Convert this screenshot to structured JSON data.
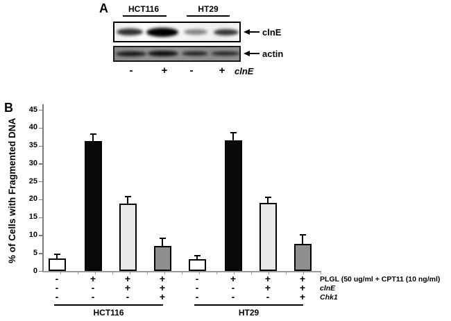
{
  "panel_a": {
    "label": "A",
    "groups": [
      "HCT116",
      "HT29"
    ],
    "blots": [
      {
        "name": "clnE",
        "bands": [
          {
            "lane": 1,
            "width": 38,
            "height": 10,
            "intensity": 0.8
          },
          {
            "lane": 2,
            "width": 46,
            "height": 13,
            "intensity": 1.0
          },
          {
            "lane": 3,
            "width": 34,
            "height": 8,
            "intensity": 0.45
          },
          {
            "lane": 4,
            "width": 36,
            "height": 9,
            "intensity": 0.78
          }
        ]
      },
      {
        "name": "actin",
        "bands": [
          {
            "lane": 1,
            "width": 44,
            "height": 7,
            "intensity": 0.85
          },
          {
            "lane": 2,
            "width": 44,
            "height": 8,
            "intensity": 0.9
          },
          {
            "lane": 3,
            "width": 38,
            "height": 6,
            "intensity": 0.8
          },
          {
            "lane": 4,
            "width": 42,
            "height": 6,
            "intensity": 0.75
          }
        ]
      }
    ],
    "lane_signs": [
      "-",
      "+",
      "-",
      "+"
    ],
    "lane_signs_label": "clnE"
  },
  "panel_b": {
    "label": "B"
  },
  "chart_data": {
    "type": "bar",
    "title": "",
    "xlabel": "",
    "ylabel": "% of Cells with Fragmented DNA",
    "ylim": [
      0,
      45
    ],
    "yticks": [
      0,
      5,
      10,
      15,
      20,
      25,
      30,
      35,
      40,
      45
    ],
    "grid": false,
    "legend_position": "none",
    "groups": [
      "HCT116",
      "HT29"
    ],
    "bars": [
      {
        "group": "HCT116",
        "value": 3.5,
        "error": 1.0,
        "color": "#ffffff"
      },
      {
        "group": "HCT116",
        "value": 36.3,
        "error": 1.9,
        "color": "#0a0a0a"
      },
      {
        "group": "HCT116",
        "value": 18.8,
        "error": 1.8,
        "color": "#e8e8e8"
      },
      {
        "group": "HCT116",
        "value": 7.0,
        "error": 2.0,
        "color": "#8f8f8f"
      },
      {
        "group": "HT29",
        "value": 3.3,
        "error": 0.8,
        "color": "#ffffff"
      },
      {
        "group": "HT29",
        "value": 36.5,
        "error": 2.0,
        "color": "#0a0a0a"
      },
      {
        "group": "HT29",
        "value": 19.0,
        "error": 1.5,
        "color": "#e8e8e8"
      },
      {
        "group": "HT29",
        "value": 7.5,
        "error": 2.5,
        "color": "#8f8f8f"
      }
    ],
    "condition_rows": [
      {
        "label": "PLGL (50 ug/ml + CPT11 (10 ng/ml)",
        "italic": false,
        "signs": [
          "-",
          "+",
          "+",
          "+",
          "-",
          "+",
          "+",
          "+"
        ]
      },
      {
        "label": "clnE",
        "italic": true,
        "signs": [
          "-",
          "-",
          "+",
          "+",
          "-",
          "-",
          "+",
          "+"
        ]
      },
      {
        "label": "Chk1",
        "italic": true,
        "signs": [
          "-",
          "-",
          "-",
          "+",
          "-",
          "-",
          "-",
          "+"
        ]
      }
    ]
  }
}
